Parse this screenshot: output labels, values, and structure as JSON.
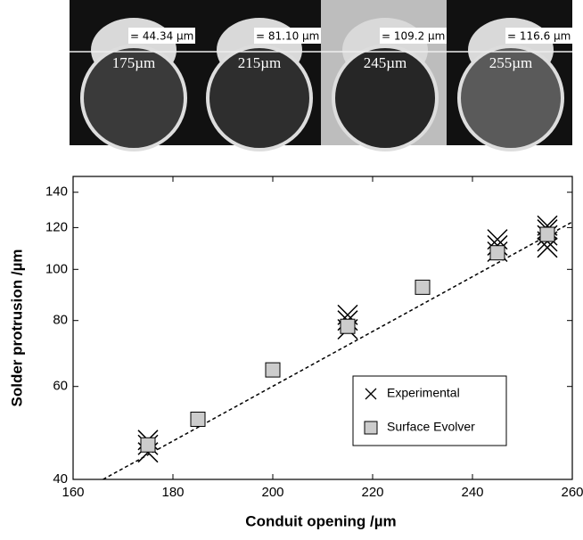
{
  "photos": [
    {
      "height_label": "= 44.34 µm",
      "opening_label": "175µm"
    },
    {
      "height_label": "= 81.10 µm",
      "opening_label": "215µm"
    },
    {
      "height_label": "= 109.2 µm",
      "opening_label": "245µm"
    },
    {
      "height_label": "= 116.6 µm",
      "opening_label": "255µm"
    }
  ],
  "chart_data": {
    "type": "scatter",
    "x_label": "Conduit opening /µm",
    "y_label": "Solder protrusion /µm",
    "xlim": [
      160,
      260
    ],
    "xticks": [
      160,
      180,
      200,
      220,
      240,
      260
    ],
    "ylim": [
      40,
      150
    ],
    "yticks": [
      40,
      60,
      80,
      100,
      120,
      140
    ],
    "y_scale": "log",
    "legend_position": "lower right",
    "series": [
      {
        "name": "Experimental",
        "marker": "x",
        "color": "#000000",
        "x": [
          175,
          175,
          175,
          215,
          215,
          215,
          245,
          245,
          245,
          255,
          255,
          255,
          255,
          255
        ],
        "values": [
          45,
          46.5,
          47.5,
          77,
          80,
          82,
          108,
          111,
          114,
          110,
          113,
          116,
          119,
          121
        ]
      },
      {
        "name": "Surface Evolver",
        "marker": "square",
        "color": "#cccccc",
        "x": [
          175,
          185,
          200,
          215,
          230,
          245,
          255
        ],
        "values": [
          46.5,
          52,
          64.5,
          78,
          92.5,
          107.5,
          116.5
        ]
      }
    ],
    "fit_line": {
      "x": [
        166,
        260
      ],
      "values": [
        40,
        123
      ]
    }
  }
}
